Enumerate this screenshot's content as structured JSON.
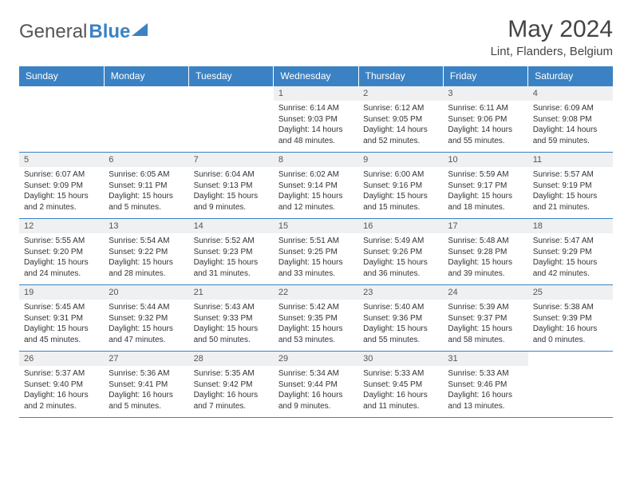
{
  "brand": {
    "text1": "General",
    "text2": "Blue"
  },
  "title": "May 2024",
  "location": "Lint, Flanders, Belgium",
  "headers": [
    "Sunday",
    "Monday",
    "Tuesday",
    "Wednesday",
    "Thursday",
    "Friday",
    "Saturday"
  ],
  "colors": {
    "header_bg": "#3b82c4",
    "header_text": "#ffffff",
    "daynum_bg": "#eef0f2",
    "border": "#3b82c4",
    "body_text": "#333333"
  },
  "fonts": {
    "title_size_pt": 22,
    "location_size_pt": 11,
    "header_size_pt": 9,
    "daynum_size_pt": 8,
    "details_size_pt": 7.5
  },
  "weeks": [
    [
      {
        "day": "",
        "sunrise": "",
        "sunset": "",
        "daylight": ""
      },
      {
        "day": "",
        "sunrise": "",
        "sunset": "",
        "daylight": ""
      },
      {
        "day": "",
        "sunrise": "",
        "sunset": "",
        "daylight": ""
      },
      {
        "day": "1",
        "sunrise": "Sunrise: 6:14 AM",
        "sunset": "Sunset: 9:03 PM",
        "daylight": "Daylight: 14 hours and 48 minutes."
      },
      {
        "day": "2",
        "sunrise": "Sunrise: 6:12 AM",
        "sunset": "Sunset: 9:05 PM",
        "daylight": "Daylight: 14 hours and 52 minutes."
      },
      {
        "day": "3",
        "sunrise": "Sunrise: 6:11 AM",
        "sunset": "Sunset: 9:06 PM",
        "daylight": "Daylight: 14 hours and 55 minutes."
      },
      {
        "day": "4",
        "sunrise": "Sunrise: 6:09 AM",
        "sunset": "Sunset: 9:08 PM",
        "daylight": "Daylight: 14 hours and 59 minutes."
      }
    ],
    [
      {
        "day": "5",
        "sunrise": "Sunrise: 6:07 AM",
        "sunset": "Sunset: 9:09 PM",
        "daylight": "Daylight: 15 hours and 2 minutes."
      },
      {
        "day": "6",
        "sunrise": "Sunrise: 6:05 AM",
        "sunset": "Sunset: 9:11 PM",
        "daylight": "Daylight: 15 hours and 5 minutes."
      },
      {
        "day": "7",
        "sunrise": "Sunrise: 6:04 AM",
        "sunset": "Sunset: 9:13 PM",
        "daylight": "Daylight: 15 hours and 9 minutes."
      },
      {
        "day": "8",
        "sunrise": "Sunrise: 6:02 AM",
        "sunset": "Sunset: 9:14 PM",
        "daylight": "Daylight: 15 hours and 12 minutes."
      },
      {
        "day": "9",
        "sunrise": "Sunrise: 6:00 AM",
        "sunset": "Sunset: 9:16 PM",
        "daylight": "Daylight: 15 hours and 15 minutes."
      },
      {
        "day": "10",
        "sunrise": "Sunrise: 5:59 AM",
        "sunset": "Sunset: 9:17 PM",
        "daylight": "Daylight: 15 hours and 18 minutes."
      },
      {
        "day": "11",
        "sunrise": "Sunrise: 5:57 AM",
        "sunset": "Sunset: 9:19 PM",
        "daylight": "Daylight: 15 hours and 21 minutes."
      }
    ],
    [
      {
        "day": "12",
        "sunrise": "Sunrise: 5:55 AM",
        "sunset": "Sunset: 9:20 PM",
        "daylight": "Daylight: 15 hours and 24 minutes."
      },
      {
        "day": "13",
        "sunrise": "Sunrise: 5:54 AM",
        "sunset": "Sunset: 9:22 PM",
        "daylight": "Daylight: 15 hours and 28 minutes."
      },
      {
        "day": "14",
        "sunrise": "Sunrise: 5:52 AM",
        "sunset": "Sunset: 9:23 PM",
        "daylight": "Daylight: 15 hours and 31 minutes."
      },
      {
        "day": "15",
        "sunrise": "Sunrise: 5:51 AM",
        "sunset": "Sunset: 9:25 PM",
        "daylight": "Daylight: 15 hours and 33 minutes."
      },
      {
        "day": "16",
        "sunrise": "Sunrise: 5:49 AM",
        "sunset": "Sunset: 9:26 PM",
        "daylight": "Daylight: 15 hours and 36 minutes."
      },
      {
        "day": "17",
        "sunrise": "Sunrise: 5:48 AM",
        "sunset": "Sunset: 9:28 PM",
        "daylight": "Daylight: 15 hours and 39 minutes."
      },
      {
        "day": "18",
        "sunrise": "Sunrise: 5:47 AM",
        "sunset": "Sunset: 9:29 PM",
        "daylight": "Daylight: 15 hours and 42 minutes."
      }
    ],
    [
      {
        "day": "19",
        "sunrise": "Sunrise: 5:45 AM",
        "sunset": "Sunset: 9:31 PM",
        "daylight": "Daylight: 15 hours and 45 minutes."
      },
      {
        "day": "20",
        "sunrise": "Sunrise: 5:44 AM",
        "sunset": "Sunset: 9:32 PM",
        "daylight": "Daylight: 15 hours and 47 minutes."
      },
      {
        "day": "21",
        "sunrise": "Sunrise: 5:43 AM",
        "sunset": "Sunset: 9:33 PM",
        "daylight": "Daylight: 15 hours and 50 minutes."
      },
      {
        "day": "22",
        "sunrise": "Sunrise: 5:42 AM",
        "sunset": "Sunset: 9:35 PM",
        "daylight": "Daylight: 15 hours and 53 minutes."
      },
      {
        "day": "23",
        "sunrise": "Sunrise: 5:40 AM",
        "sunset": "Sunset: 9:36 PM",
        "daylight": "Daylight: 15 hours and 55 minutes."
      },
      {
        "day": "24",
        "sunrise": "Sunrise: 5:39 AM",
        "sunset": "Sunset: 9:37 PM",
        "daylight": "Daylight: 15 hours and 58 minutes."
      },
      {
        "day": "25",
        "sunrise": "Sunrise: 5:38 AM",
        "sunset": "Sunset: 9:39 PM",
        "daylight": "Daylight: 16 hours and 0 minutes."
      }
    ],
    [
      {
        "day": "26",
        "sunrise": "Sunrise: 5:37 AM",
        "sunset": "Sunset: 9:40 PM",
        "daylight": "Daylight: 16 hours and 2 minutes."
      },
      {
        "day": "27",
        "sunrise": "Sunrise: 5:36 AM",
        "sunset": "Sunset: 9:41 PM",
        "daylight": "Daylight: 16 hours and 5 minutes."
      },
      {
        "day": "28",
        "sunrise": "Sunrise: 5:35 AM",
        "sunset": "Sunset: 9:42 PM",
        "daylight": "Daylight: 16 hours and 7 minutes."
      },
      {
        "day": "29",
        "sunrise": "Sunrise: 5:34 AM",
        "sunset": "Sunset: 9:44 PM",
        "daylight": "Daylight: 16 hours and 9 minutes."
      },
      {
        "day": "30",
        "sunrise": "Sunrise: 5:33 AM",
        "sunset": "Sunset: 9:45 PM",
        "daylight": "Daylight: 16 hours and 11 minutes."
      },
      {
        "day": "31",
        "sunrise": "Sunrise: 5:33 AM",
        "sunset": "Sunset: 9:46 PM",
        "daylight": "Daylight: 16 hours and 13 minutes."
      },
      {
        "day": "",
        "sunrise": "",
        "sunset": "",
        "daylight": ""
      }
    ]
  ]
}
